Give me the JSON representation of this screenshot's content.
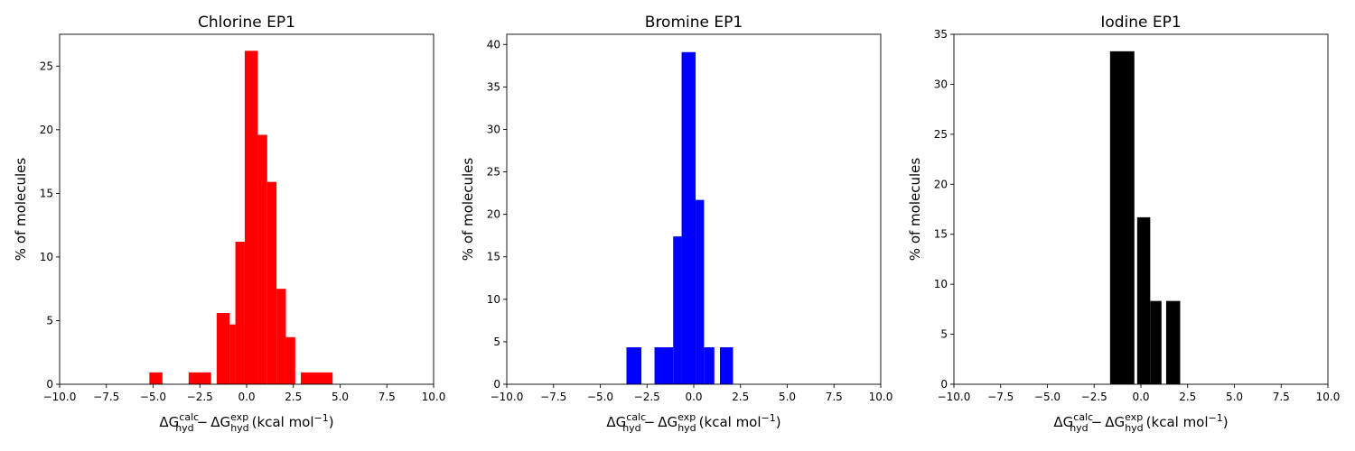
{
  "chart_data": [
    {
      "type": "bar",
      "title": "Chlorine EP1",
      "ylabel": "% of molecules",
      "xlabel": "ΔGcalc hyd − ΔGexp hyd (kcal mol−1)",
      "xlim": [
        -10,
        10
      ],
      "ylim": [
        0,
        27.5
      ],
      "xticks": [
        "−10.0",
        "−7.5",
        "−5.0",
        "−2.5",
        "0.0",
        "2.5",
        "5.0",
        "7.5",
        "10.0"
      ],
      "yticks": [
        "0",
        "5",
        "10",
        "15",
        "20",
        "25"
      ],
      "color": "#ff0000",
      "bins": [
        {
          "x0": -5.2,
          "x1": -4.5,
          "value": 0.93
        },
        {
          "x0": -3.1,
          "x1": -1.9,
          "value": 0.93
        },
        {
          "x0": -1.6,
          "x1": -0.9,
          "value": 5.6
        },
        {
          "x0": -0.9,
          "x1": -0.6,
          "value": 4.7
        },
        {
          "x0": -0.6,
          "x1": -0.1,
          "value": 11.2
        },
        {
          "x0": -0.1,
          "x1": 0.6,
          "value": 26.2
        },
        {
          "x0": 0.6,
          "x1": 1.1,
          "value": 19.6
        },
        {
          "x0": 1.1,
          "x1": 1.6,
          "value": 15.9
        },
        {
          "x0": 1.6,
          "x1": 2.1,
          "value": 7.5
        },
        {
          "x0": 2.1,
          "x1": 2.6,
          "value": 3.7
        },
        {
          "x0": 2.9,
          "x1": 4.6,
          "value": 0.93
        }
      ]
    },
    {
      "type": "bar",
      "title": "Bromine EP1",
      "ylabel": "% of molecules",
      "xlabel": "ΔGcalc hyd − ΔGexp hyd (kcal mol−1)",
      "xlim": [
        -10,
        10
      ],
      "ylim": [
        0,
        41.2
      ],
      "xticks": [
        "−10.0",
        "−7.5",
        "−5.0",
        "−2.5",
        "0.0",
        "2.5",
        "5.0",
        "7.5",
        "10.0"
      ],
      "yticks": [
        "0",
        "5",
        "10",
        "15",
        "20",
        "25",
        "30",
        "35",
        "40"
      ],
      "color": "#0000ff",
      "bins": [
        {
          "x0": -3.6,
          "x1": -2.8,
          "value": 4.35
        },
        {
          "x0": -2.1,
          "x1": -1.1,
          "value": 4.35
        },
        {
          "x0": -1.1,
          "x1": -0.65,
          "value": 17.4
        },
        {
          "x0": -0.65,
          "x1": 0.1,
          "value": 39.1
        },
        {
          "x0": 0.1,
          "x1": 0.55,
          "value": 21.7
        },
        {
          "x0": 0.55,
          "x1": 1.1,
          "value": 4.35
        },
        {
          "x0": 1.4,
          "x1": 2.1,
          "value": 4.35
        }
      ]
    },
    {
      "type": "bar",
      "title": "Iodine EP1",
      "ylabel": "% of molecules",
      "xlabel": "ΔGcalc hyd − ΔGexp hyd (kcal mol−1)",
      "xlim": [
        -10,
        10
      ],
      "ylim": [
        0,
        35
      ],
      "xticks": [
        "−10.0",
        "−7.5",
        "−5.0",
        "−2.5",
        "0.0",
        "2.5",
        "5.0",
        "7.5",
        "10.0"
      ],
      "yticks": [
        "0",
        "5",
        "10",
        "15",
        "20",
        "25",
        "30",
        "35"
      ],
      "color": "#000000",
      "bins": [
        {
          "x0": -1.65,
          "x1": -0.35,
          "value": 33.3
        },
        {
          "x0": -0.2,
          "x1": 0.5,
          "value": 16.7
        },
        {
          "x0": 0.5,
          "x1": 1.1,
          "value": 8.33
        },
        {
          "x0": 1.35,
          "x1": 2.1,
          "value": 8.33
        }
      ]
    }
  ]
}
